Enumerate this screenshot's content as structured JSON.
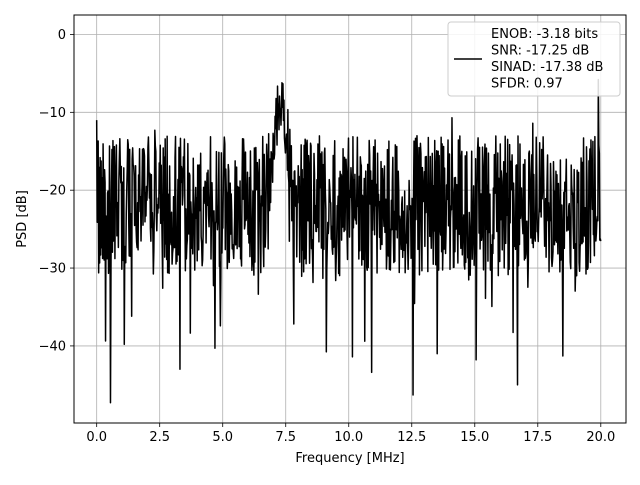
{
  "chart_data": {
    "type": "line",
    "xlabel": "Frequency [MHz]",
    "ylabel": "PSD [dB]",
    "xlim": [
      -0.9,
      21.0
    ],
    "ylim": [
      -49.9,
      2.5
    ],
    "x_ticks": [
      0.0,
      2.5,
      5.0,
      7.5,
      10.0,
      12.5,
      15.0,
      17.5,
      20.0
    ],
    "x_tick_labels": [
      "0.0",
      "2.5",
      "5.0",
      "7.5",
      "10.0",
      "12.5",
      "15.0",
      "17.5",
      "20.0"
    ],
    "y_ticks": [
      0,
      -10,
      -20,
      -30,
      -40
    ],
    "y_tick_labels": [
      "0",
      "−10",
      "−20",
      "−30",
      "−40"
    ],
    "grid": true,
    "legend_position": "top-right",
    "series": [
      {
        "legend_lines": [
          "ENOB: -3.18 bits",
          "SNR: -17.25 dB",
          "SINAD: -17.38 dB",
          "SFDR: 0.97"
        ],
        "color": "#000000",
        "x_range": [
          0.0,
          20.0
        ],
        "n_points": 1024,
        "baseline_db": -22,
        "noise_amplitude_db": 9,
        "peak": {
          "x": 7.3,
          "y": 0.0,
          "width": 0.35
        },
        "spikes": [
          {
            "x": 0.0,
            "y": -11.0
          },
          {
            "x": 0.55,
            "y": -47.3
          },
          {
            "x": 12.55,
            "y": -46.3
          },
          {
            "x": 19.9,
            "y": -5.8
          },
          {
            "x": 3.3,
            "y": -43.0
          },
          {
            "x": 10.9,
            "y": -43.4
          },
          {
            "x": 16.7,
            "y": -45.0
          },
          {
            "x": 1.1,
            "y": -39.8
          },
          {
            "x": 4.7,
            "y": -40.3
          },
          {
            "x": 10.15,
            "y": -41.4
          },
          {
            "x": 13.5,
            "y": -41.0
          },
          {
            "x": 15.05,
            "y": -41.8
          },
          {
            "x": 18.5,
            "y": -41.3
          },
          {
            "x": 2.3,
            "y": -12.3
          },
          {
            "x": 14.1,
            "y": -10.7
          },
          {
            "x": 17.3,
            "y": -11.4
          }
        ]
      }
    ]
  }
}
